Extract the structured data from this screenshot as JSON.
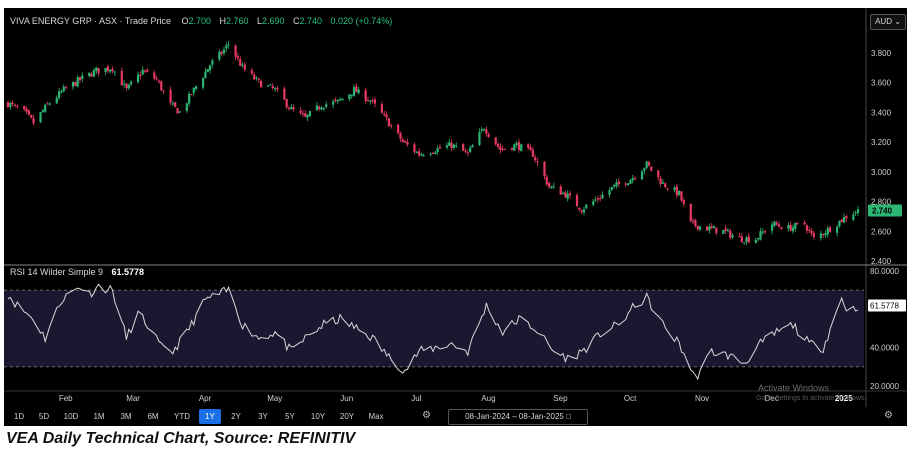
{
  "header": {
    "symbol": "VIVA ENERGY GRP · ASX · Trade Price",
    "o_label": "O",
    "o_value": "2.700",
    "h_label": "H",
    "h_value": "2.760",
    "l_label": "L",
    "l_value": "2.690",
    "c_label": "C",
    "c_value": "2.740",
    "change": "0.020 (+0.74%)"
  },
  "currency": "AUD",
  "caption": "VEA Daily Technical Chart, Source: REFINITIV",
  "toolbar": {
    "timeframes": [
      "1D",
      "5D",
      "10D",
      "1M",
      "3M",
      "6M",
      "YTD",
      "1Y",
      "2Y",
      "3Y",
      "5Y",
      "10Y",
      "20Y",
      "Max"
    ],
    "active": "1Y",
    "date_from": "08-Jan-2024",
    "date_sep": "–",
    "date_to": "08-Jan-2025"
  },
  "watermark": {
    "line1": "Activate Windows",
    "line2": "Go to Settings to activate Windows."
  },
  "chart_data": [
    {
      "type": "candlestick",
      "ylim": [
        2.4,
        3.9
      ],
      "y_ticks": [
        "2.400",
        "2.600",
        "2.800",
        "3.000",
        "3.200",
        "3.400",
        "3.600",
        "3.800"
      ],
      "x_ticks": [
        "Feb",
        "Mar",
        "Apr",
        "May",
        "Jun",
        "Jul",
        "Aug",
        "Sep",
        "Oct",
        "Nov",
        "Dec",
        "2025"
      ],
      "last_price_label": "2.740",
      "up_color": "#2bb673",
      "down_color": "#e83a62",
      "close_path": [
        [
          "2024-01-08",
          3.46
        ],
        [
          "2024-01-15",
          3.4
        ],
        [
          "2024-01-19",
          3.33
        ],
        [
          "2024-01-25",
          3.45
        ],
        [
          "2024-02-01",
          3.55
        ],
        [
          "2024-02-08",
          3.62
        ],
        [
          "2024-02-15",
          3.68
        ],
        [
          "2024-02-22",
          3.7
        ],
        [
          "2024-02-28",
          3.55
        ],
        [
          "2024-03-06",
          3.68
        ],
        [
          "2024-03-12",
          3.62
        ],
        [
          "2024-03-18",
          3.45
        ],
        [
          "2024-03-22",
          3.4
        ],
        [
          "2024-03-28",
          3.55
        ],
        [
          "2024-04-04",
          3.72
        ],
        [
          "2024-04-09",
          3.8
        ],
        [
          "2024-04-12",
          3.86
        ],
        [
          "2024-04-18",
          3.7
        ],
        [
          "2024-04-25",
          3.6
        ],
        [
          "2024-05-02",
          3.55
        ],
        [
          "2024-05-09",
          3.42
        ],
        [
          "2024-05-15",
          3.36
        ],
        [
          "2024-05-22",
          3.45
        ],
        [
          "2024-05-29",
          3.47
        ],
        [
          "2024-06-05",
          3.55
        ],
        [
          "2024-06-12",
          3.48
        ],
        [
          "2024-06-19",
          3.35
        ],
        [
          "2024-06-26",
          3.2
        ],
        [
          "2024-07-03",
          3.12
        ],
        [
          "2024-07-10",
          3.15
        ],
        [
          "2024-07-17",
          3.18
        ],
        [
          "2024-07-24",
          3.12
        ],
        [
          "2024-07-31",
          3.3
        ],
        [
          "2024-08-07",
          3.15
        ],
        [
          "2024-08-14",
          3.18
        ],
        [
          "2024-08-21",
          3.12
        ],
        [
          "2024-08-28",
          2.9
        ],
        [
          "2024-09-04",
          2.85
        ],
        [
          "2024-09-11",
          2.75
        ],
        [
          "2024-09-18",
          2.82
        ],
        [
          "2024-09-25",
          2.9
        ],
        [
          "2024-10-02",
          2.95
        ],
        [
          "2024-10-09",
          3.05
        ],
        [
          "2024-10-16",
          2.92
        ],
        [
          "2024-10-23",
          2.85
        ],
        [
          "2024-10-28",
          2.65
        ],
        [
          "2024-11-04",
          2.62
        ],
        [
          "2024-11-11",
          2.6
        ],
        [
          "2024-11-18",
          2.55
        ],
        [
          "2024-11-25",
          2.55
        ],
        [
          "2024-12-02",
          2.65
        ],
        [
          "2024-12-09",
          2.62
        ],
        [
          "2024-12-16",
          2.65
        ],
        [
          "2024-12-20",
          2.55
        ],
        [
          "2024-12-27",
          2.62
        ],
        [
          "2025-01-03",
          2.7
        ],
        [
          "2025-01-08",
          2.74
        ]
      ]
    },
    {
      "type": "line",
      "title": "RSI 14 Wilder Simple 9",
      "last_value": "61.5778",
      "ylim": [
        20,
        80
      ],
      "y_ticks": [
        "20.0000",
        "40.0000",
        "80.0000"
      ],
      "overbought": 70,
      "oversold": 30,
      "line_color": "#d9d9d9",
      "points": [
        [
          "2024-01-08",
          68
        ],
        [
          "2024-01-12",
          62
        ],
        [
          "2024-01-19",
          55
        ],
        [
          "2024-01-24",
          45
        ],
        [
          "2024-01-31",
          65
        ],
        [
          "2024-02-08",
          72
        ],
        [
          "2024-02-12",
          68
        ],
        [
          "2024-02-16",
          72
        ],
        [
          "2024-02-22",
          70
        ],
        [
          "2024-02-28",
          45
        ],
        [
          "2024-03-04",
          58
        ],
        [
          "2024-03-08",
          52
        ],
        [
          "2024-03-14",
          40
        ],
        [
          "2024-03-19",
          38
        ],
        [
          "2024-03-25",
          48
        ],
        [
          "2024-04-02",
          65
        ],
        [
          "2024-04-08",
          68
        ],
        [
          "2024-04-12",
          70
        ],
        [
          "2024-04-18",
          52
        ],
        [
          "2024-04-25",
          45
        ],
        [
          "2024-05-02",
          48
        ],
        [
          "2024-05-09",
          38
        ],
        [
          "2024-05-16",
          46
        ],
        [
          "2024-05-23",
          52
        ],
        [
          "2024-05-30",
          55
        ],
        [
          "2024-06-06",
          50
        ],
        [
          "2024-06-13",
          45
        ],
        [
          "2024-06-20",
          35
        ],
        [
          "2024-06-27",
          28
        ],
        [
          "2024-07-03",
          38
        ],
        [
          "2024-07-10",
          40
        ],
        [
          "2024-07-17",
          42
        ],
        [
          "2024-07-24",
          38
        ],
        [
          "2024-08-01",
          62
        ],
        [
          "2024-08-08",
          48
        ],
        [
          "2024-08-15",
          55
        ],
        [
          "2024-08-22",
          50
        ],
        [
          "2024-08-30",
          38
        ],
        [
          "2024-09-06",
          34
        ],
        [
          "2024-09-13",
          40
        ],
        [
          "2024-09-20",
          48
        ],
        [
          "2024-09-27",
          52
        ],
        [
          "2024-10-04",
          62
        ],
        [
          "2024-10-09",
          66
        ],
        [
          "2024-10-16",
          52
        ],
        [
          "2024-10-23",
          42
        ],
        [
          "2024-10-30",
          24
        ],
        [
          "2024-11-06",
          38
        ],
        [
          "2024-11-13",
          36
        ],
        [
          "2024-11-20",
          32
        ],
        [
          "2024-11-27",
          42
        ],
        [
          "2024-12-04",
          48
        ],
        [
          "2024-12-11",
          52
        ],
        [
          "2024-12-18",
          42
        ],
        [
          "2024-12-24",
          40
        ],
        [
          "2025-01-01",
          66
        ],
        [
          "2025-01-04",
          58
        ],
        [
          "2025-01-08",
          62
        ]
      ]
    }
  ]
}
